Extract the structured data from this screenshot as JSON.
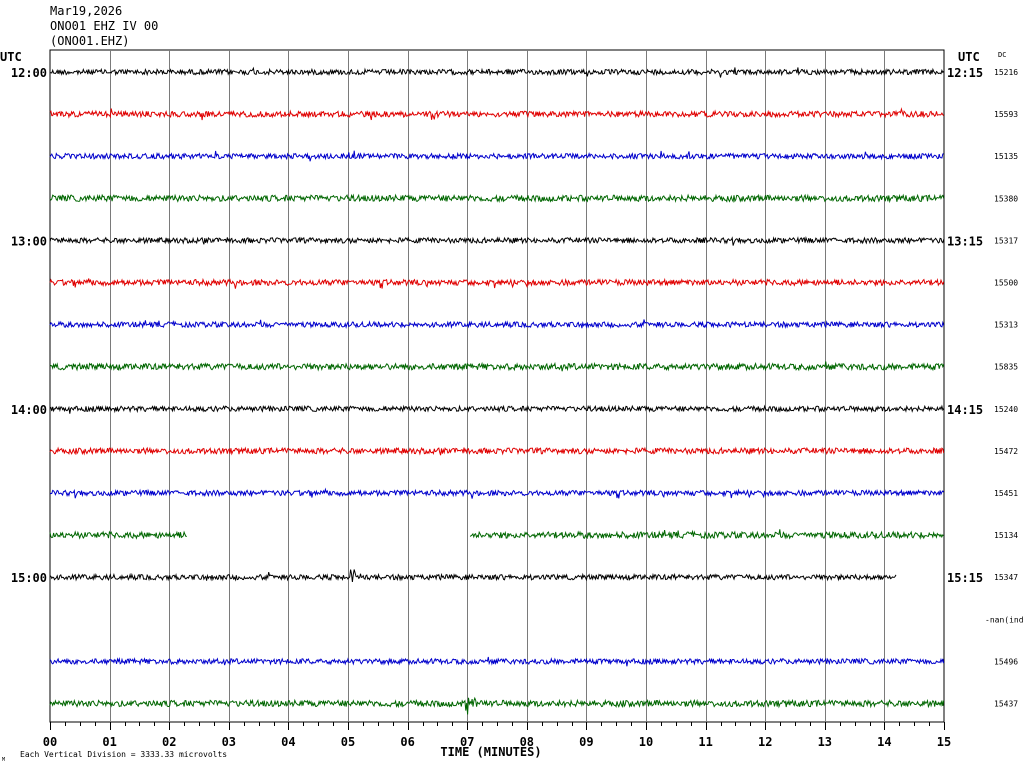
{
  "header": {
    "date": "Mar19,2026",
    "station_line": "ONO01 EHZ IV 00",
    "station_code": "(ONO01.EHZ)"
  },
  "utc_left": "UTC",
  "utc_right": "UTC",
  "dc_label": "DC",
  "footer": {
    "scale_note": "Each Vertical Division = 3333.33 microvolts",
    "corner_mark": "M"
  },
  "colors": {
    "black": "#000000",
    "red": "#e00000",
    "blue": "#0000cc",
    "green": "#006600",
    "grid": "#7a7a7a"
  },
  "chart_data": {
    "type": "line",
    "title": "",
    "xlabel": "TIME (MINUTES)",
    "ylabel": "",
    "xlim": [
      0,
      15
    ],
    "x_ticks": [
      "00",
      "01",
      "02",
      "03",
      "04",
      "05",
      "06",
      "07",
      "08",
      "09",
      "10",
      "11",
      "12",
      "13",
      "14",
      "15"
    ],
    "hour_labels_left": [
      {
        "row": 0,
        "label": "12:00"
      },
      {
        "row": 4,
        "label": "13:00"
      },
      {
        "row": 8,
        "label": "14:00"
      },
      {
        "row": 12,
        "label": "15:00"
      }
    ],
    "hour_labels_right": [
      {
        "row": 0,
        "label": "12:15"
      },
      {
        "row": 4,
        "label": "13:15"
      },
      {
        "row": 8,
        "label": "14:15"
      },
      {
        "row": 12,
        "label": "15:15"
      }
    ],
    "row_count": 16,
    "traces": [
      {
        "row": 0,
        "color": "black",
        "dc": "15216",
        "segments": [
          [
            0,
            15
          ]
        ],
        "amp": 1.0
      },
      {
        "row": 1,
        "color": "red",
        "dc": "15593",
        "segments": [
          [
            0,
            15
          ]
        ],
        "amp": 1.1
      },
      {
        "row": 2,
        "color": "blue",
        "dc": "15135",
        "segments": [
          [
            0,
            15
          ]
        ],
        "amp": 1.0
      },
      {
        "row": 3,
        "color": "green",
        "dc": "15380",
        "segments": [
          [
            0,
            15
          ]
        ],
        "amp": 1.2
      },
      {
        "row": 4,
        "color": "black",
        "dc": "15317",
        "segments": [
          [
            0,
            15
          ]
        ],
        "amp": 1.0
      },
      {
        "row": 5,
        "color": "red",
        "dc": "15500",
        "segments": [
          [
            0,
            15
          ]
        ],
        "amp": 1.1
      },
      {
        "row": 6,
        "color": "blue",
        "dc": "15313",
        "segments": [
          [
            0,
            15
          ]
        ],
        "amp": 1.0
      },
      {
        "row": 7,
        "color": "green",
        "dc": "15835",
        "segments": [
          [
            0,
            15
          ]
        ],
        "amp": 1.2
      },
      {
        "row": 8,
        "color": "black",
        "dc": "15240",
        "segments": [
          [
            0,
            15
          ]
        ],
        "amp": 1.0
      },
      {
        "row": 9,
        "color": "red",
        "dc": "15472",
        "segments": [
          [
            0,
            15
          ]
        ],
        "amp": 1.1
      },
      {
        "row": 10,
        "color": "blue",
        "dc": "15451",
        "segments": [
          [
            0,
            15
          ]
        ],
        "amp": 1.0
      },
      {
        "row": 11,
        "color": "green",
        "dc": "15134",
        "segments": [
          [
            0,
            2.3
          ],
          [
            7.05,
            15
          ]
        ],
        "amp": 1.2
      },
      {
        "row": 12,
        "color": "black",
        "dc": "15347",
        "segments": [
          [
            0,
            14.2
          ]
        ],
        "amp": 1.0,
        "event_at": 5.07
      },
      {
        "row": 13,
        "color": "red",
        "dc": "-nan(ind)",
        "segments": [],
        "amp": 1.0
      },
      {
        "row": 14,
        "color": "blue",
        "dc": "15496",
        "segments": [
          [
            0,
            15
          ]
        ],
        "amp": 1.0
      },
      {
        "row": 15,
        "color": "green",
        "dc": "15437",
        "segments": [
          [
            0,
            15
          ]
        ],
        "amp": 1.2,
        "event_at": 7.0
      }
    ]
  }
}
